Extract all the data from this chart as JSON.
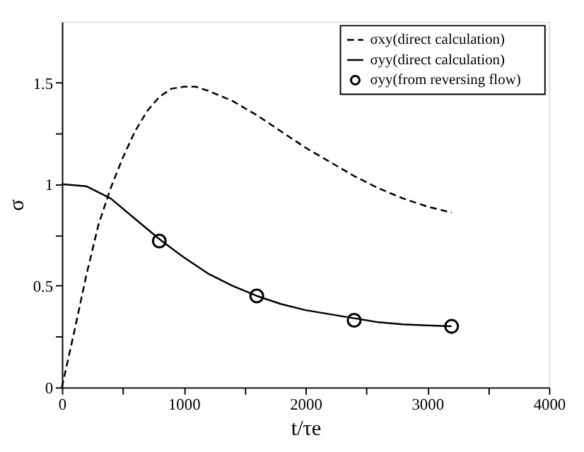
{
  "chart_data": {
    "type": "line",
    "xlabel": "t/τe",
    "ylabel": "σ",
    "xlim": [
      0,
      4000
    ],
    "ylim": [
      0,
      1.8
    ],
    "xticks": [
      0,
      {
        "value": 500,
        "label": null
      },
      1000,
      {
        "value": 1500,
        "label": null
      },
      2000,
      {
        "value": 2500,
        "label": null
      },
      3000,
      {
        "value": 3500,
        "label": null
      },
      4000
    ],
    "yticks": [
      0,
      {
        "value": 0.25,
        "label": null
      },
      0.5,
      {
        "value": 0.75,
        "label": null
      },
      1,
      {
        "value": 1.25,
        "label": null
      },
      1.5
    ],
    "grid": false,
    "legend": "top right",
    "series": [
      {
        "name": "σxy(direct calculation)",
        "color": "#000000",
        "line_style": "dashed",
        "marker": "none",
        "x": [
          0,
          100,
          200,
          300,
          400,
          500,
          600,
          700,
          800,
          900,
          1000,
          1100,
          1200,
          1400,
          1600,
          1800,
          2000,
          2200,
          2400,
          2600,
          2800,
          3000,
          3200
        ],
        "values": [
          0,
          0.27,
          0.55,
          0.8,
          0.98,
          1.13,
          1.26,
          1.36,
          1.43,
          1.47,
          1.48,
          1.48,
          1.46,
          1.41,
          1.34,
          1.26,
          1.18,
          1.11,
          1.04,
          0.98,
          0.93,
          0.89,
          0.86
        ]
      },
      {
        "name": "σyy(direct calculation)",
        "color": "#000000",
        "line_style": "solid",
        "marker": "none",
        "x": [
          0,
          200,
          400,
          600,
          800,
          1000,
          1200,
          1400,
          1600,
          1800,
          2000,
          2200,
          2400,
          2600,
          2800,
          3000,
          3200
        ],
        "values": [
          1.0,
          0.99,
          0.93,
          0.83,
          0.73,
          0.64,
          0.56,
          0.5,
          0.45,
          0.41,
          0.38,
          0.36,
          0.34,
          0.32,
          0.31,
          0.305,
          0.3
        ]
      },
      {
        "name": "σyy(from reversing flow)",
        "color": "#000000",
        "type": "scatter",
        "marker": "circle",
        "x": [
          800,
          1600,
          2400,
          3200
        ],
        "values": [
          0.72,
          0.45,
          0.33,
          0.3
        ]
      }
    ]
  }
}
